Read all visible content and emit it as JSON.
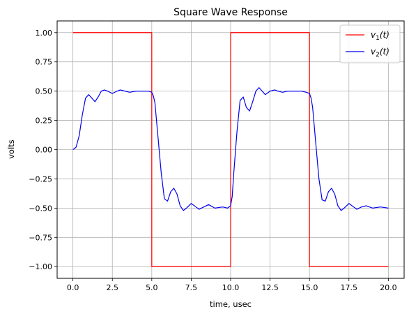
{
  "chart_data": {
    "type": "line",
    "title": "Square Wave Response",
    "xlabel": "time, usec",
    "ylabel": "volts",
    "xlim": [
      -1,
      21
    ],
    "ylim": [
      -1.1,
      1.1
    ],
    "xticks": [
      0.0,
      2.5,
      5.0,
      7.5,
      10.0,
      12.5,
      15.0,
      17.5,
      20.0
    ],
    "xtick_labels": [
      "0.0",
      "2.5",
      "5.0",
      "7.5",
      "10.0",
      "12.5",
      "15.0",
      "17.5",
      "20.0"
    ],
    "yticks": [
      1.0,
      0.75,
      0.5,
      0.25,
      0.0,
      -0.25,
      -0.5,
      -0.75,
      -1.0
    ],
    "ytick_labels": [
      "1.00",
      "0.75",
      "0.50",
      "0.25",
      "0.00",
      "−0.25",
      "−0.50",
      "−0.75",
      "−1.00"
    ],
    "grid": true,
    "legend_position": "top-right",
    "series": [
      {
        "name_main": "v",
        "name_sub": "1",
        "name_suffix": "(t)",
        "color": "#ff0000",
        "x": [
          0,
          5,
          5,
          10,
          10,
          15,
          15,
          20
        ],
        "y": [
          1,
          1,
          -1,
          -1,
          1,
          1,
          -1,
          -1
        ]
      },
      {
        "name_main": "v",
        "name_sub": "2",
        "name_suffix": "(t)",
        "color": "#0000ee",
        "x": [
          0,
          0.2,
          0.4,
          0.6,
          0.8,
          1.0,
          1.2,
          1.4,
          1.6,
          1.8,
          2.0,
          2.2,
          2.5,
          2.8,
          3.0,
          3.3,
          3.6,
          4.0,
          4.5,
          4.8,
          5.0,
          5.1,
          5.2,
          5.4,
          5.6,
          5.8,
          6.0,
          6.2,
          6.4,
          6.6,
          6.8,
          7.0,
          7.2,
          7.5,
          7.8,
          8.0,
          8.3,
          8.6,
          9.0,
          9.5,
          9.8,
          10.0,
          10.1,
          10.2,
          10.4,
          10.6,
          10.8,
          11.0,
          11.2,
          11.4,
          11.6,
          11.8,
          12.0,
          12.2,
          12.5,
          12.8,
          13.0,
          13.3,
          13.6,
          14.0,
          14.5,
          14.8,
          15.0,
          15.1,
          15.2,
          15.4,
          15.6,
          15.8,
          16.0,
          16.2,
          16.4,
          16.6,
          16.8,
          17.0,
          17.2,
          17.5,
          17.8,
          18.0,
          18.3,
          18.6,
          19.0,
          19.5,
          20.0
        ],
        "y": [
          0.0,
          0.02,
          0.12,
          0.3,
          0.44,
          0.47,
          0.44,
          0.41,
          0.45,
          0.5,
          0.51,
          0.5,
          0.48,
          0.5,
          0.51,
          0.5,
          0.49,
          0.5,
          0.5,
          0.5,
          0.49,
          0.46,
          0.4,
          0.1,
          -0.2,
          -0.42,
          -0.44,
          -0.36,
          -0.33,
          -0.38,
          -0.48,
          -0.52,
          -0.5,
          -0.46,
          -0.49,
          -0.51,
          -0.49,
          -0.47,
          -0.5,
          -0.49,
          -0.5,
          -0.48,
          -0.4,
          -0.2,
          0.15,
          0.42,
          0.45,
          0.36,
          0.33,
          0.41,
          0.5,
          0.53,
          0.5,
          0.47,
          0.5,
          0.51,
          0.5,
          0.49,
          0.5,
          0.5,
          0.5,
          0.49,
          0.48,
          0.44,
          0.36,
          0.05,
          -0.25,
          -0.43,
          -0.44,
          -0.36,
          -0.33,
          -0.38,
          -0.48,
          -0.52,
          -0.5,
          -0.46,
          -0.49,
          -0.51,
          -0.49,
          -0.48,
          -0.5,
          -0.49,
          -0.5
        ]
      }
    ]
  }
}
